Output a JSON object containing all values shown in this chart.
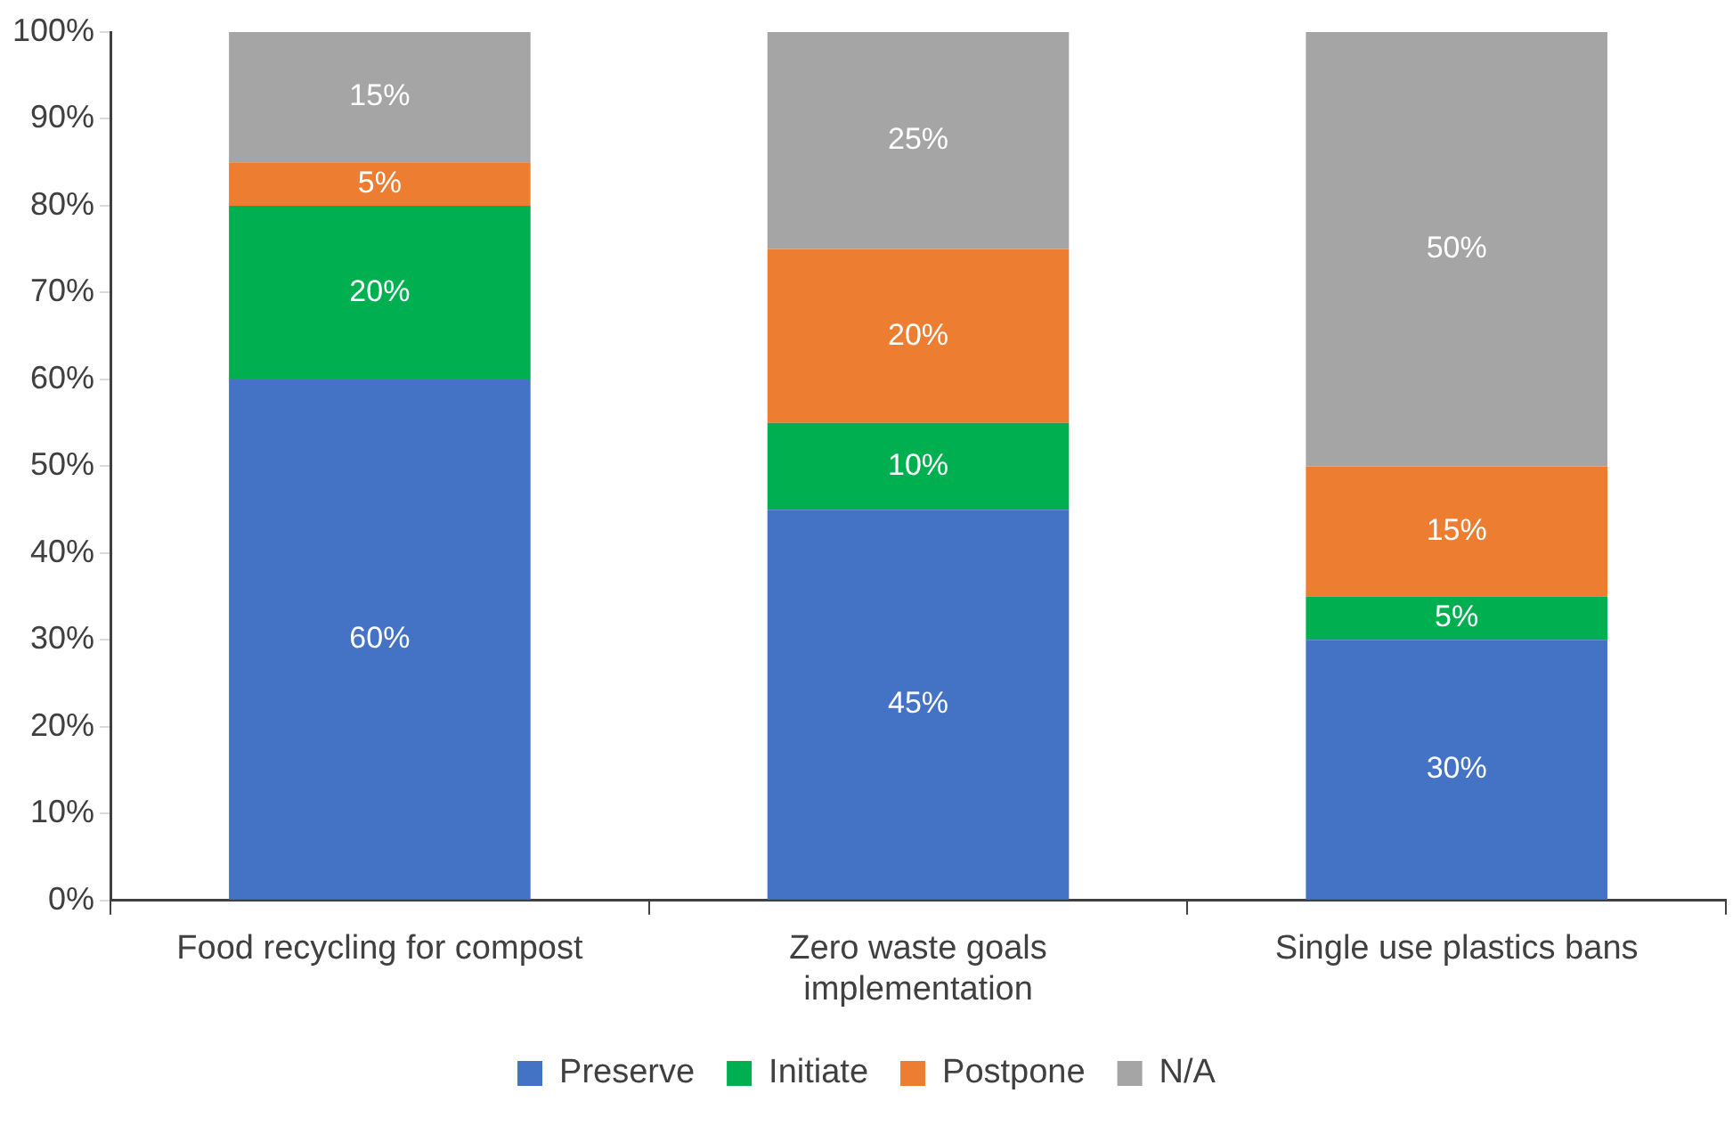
{
  "chart_data": {
    "type": "bar",
    "stacked": true,
    "categories": [
      "Food recycling for compost",
      "Zero waste goals implementation",
      "Single use plastics bans"
    ],
    "series": [
      {
        "name": "Preserve",
        "color": "#4472c4",
        "values": [
          60,
          45,
          30
        ],
        "value_labels": [
          "60%",
          "45%",
          "30%"
        ]
      },
      {
        "name": "Initiate",
        "color": "#00b050",
        "values": [
          20,
          10,
          5
        ],
        "value_labels": [
          "20%",
          "10%",
          "5%"
        ]
      },
      {
        "name": "Postpone",
        "color": "#ed7d31",
        "values": [
          5,
          20,
          15
        ],
        "value_labels": [
          "5%",
          "20%",
          "15%"
        ]
      },
      {
        "name": "N/A",
        "color": "#a5a5a5",
        "values": [
          15,
          25,
          50
        ],
        "value_labels": [
          "15%",
          "25%",
          "50%"
        ]
      }
    ],
    "ylim": [
      0,
      100
    ],
    "yticks": [
      {
        "value": 0,
        "label": "0%"
      },
      {
        "value": 10,
        "label": "10%"
      },
      {
        "value": 20,
        "label": "20%"
      },
      {
        "value": 30,
        "label": "30%"
      },
      {
        "value": 40,
        "label": "40%"
      },
      {
        "value": 50,
        "label": "50%"
      },
      {
        "value": 60,
        "label": "60%"
      },
      {
        "value": 70,
        "label": "70%"
      },
      {
        "value": 80,
        "label": "80%"
      },
      {
        "value": 90,
        "label": "90%"
      },
      {
        "value": 100,
        "label": "100%"
      }
    ],
    "grid": false,
    "legend": "bottom"
  }
}
